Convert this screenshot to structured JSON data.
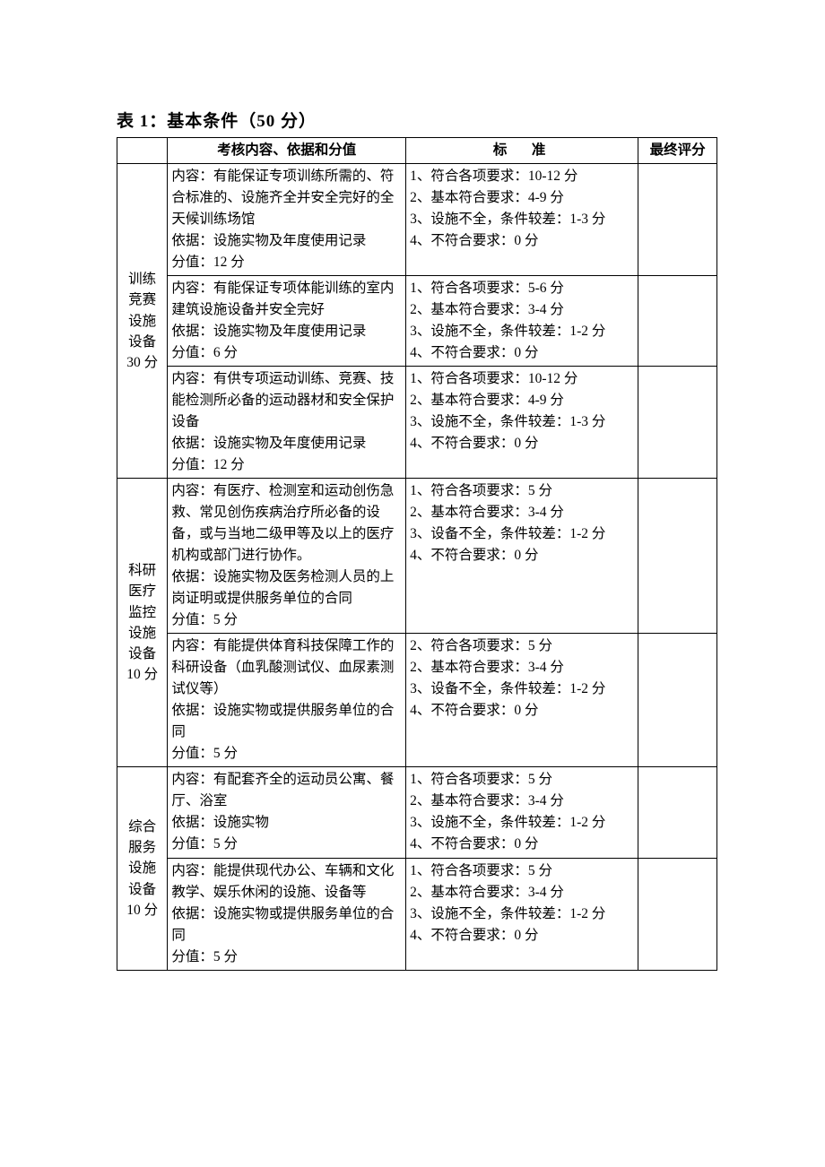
{
  "title": "表 1：基本条件（50 分）",
  "headers": {
    "col1": "",
    "col2": "考核内容、依据和分值",
    "col3": "标　准",
    "col4": "最终评分"
  },
  "sections": [
    {
      "category": "训练\n竞赛\n设施\n设备\n30 分",
      "rows": [
        {
          "content": "内容：有能保证专项训练所需的、符合标准的、设施齐全并安全完好的全天候训练场馆\n依据：设施实物及年度使用记录\n分值：12 分",
          "standard": "1、符合各项要求：10-12 分\n2、基本符合要求：4-9 分\n3、设施不全，条件较差：1-3 分\n4、不符合要求：0 分"
        },
        {
          "content": "内容：有能保证专项体能训练的室内建筑设施设备并安全完好\n依据：设施实物及年度使用记录\n分值：6 分",
          "standard": "1、符合各项要求：5-6 分\n2、基本符合要求：3-4 分\n3、设施不全，条件较差：1-2 分\n4、不符合要求：0 分"
        },
        {
          "content": "内容：有供专项运动训练、竞赛、技能检测所必备的运动器材和安全保护设备\n依据：设施实物及年度使用记录\n分值：12 分",
          "standard": "1、符合各项要求：10-12 分\n2、基本符合要求：4-9 分\n3、设施不全，条件较差：1-3 分\n4、不符合要求：0 分"
        }
      ]
    },
    {
      "category": "科研\n医疗\n监控\n设施\n设备\n10 分",
      "rows": [
        {
          "content": "内容：有医疗、检测室和运动创伤急救、常见创伤疾病治疗所必备的设备，或与当地二级甲等及以上的医疗机构或部门进行协作。\n依据：设施实物及医务检测人员的上岗证明或提供服务单位的合同\n分值：5 分",
          "standard": "1、符合各项要求：5 分\n2、基本符合要求：3-4 分\n3、设备不全，条件较差：1-2 分\n4、不符合要求：0 分"
        },
        {
          "content": "内容：有能提供体育科技保障工作的科研设备（血乳酸测试仪、血尿素测试仪等）\n依据：设施实物或提供服务单位的合同\n分值：5 分",
          "standard": "2、符合各项要求：5 分\n2、基本符合要求：3-4 分\n3、设备不全，条件较差：1-2 分\n4、不符合要求：0 分"
        }
      ]
    },
    {
      "category": "综合\n服务\n设施\n设备\n10 分",
      "rows": [
        {
          "content": "内容：有配套齐全的运动员公寓、餐厅、浴室\n依据：设施实物\n分值：5 分",
          "standard": "1、符合各项要求：5 分\n2、基本符合要求：3-4 分\n3、设施不全，条件较差：1-2 分\n4、不符合要求：0 分"
        },
        {
          "content": "内容：能提供现代办公、车辆和文化教学、娱乐休闲的设施、设备等\n依据：设施实物或提供服务单位的合同\n分值：5 分",
          "standard": "1、符合各项要求：5 分\n2、基本符合要求：3-4 分\n3、设施不全，条件较差：1-2 分\n4、不符合要求：0 分"
        }
      ]
    }
  ]
}
